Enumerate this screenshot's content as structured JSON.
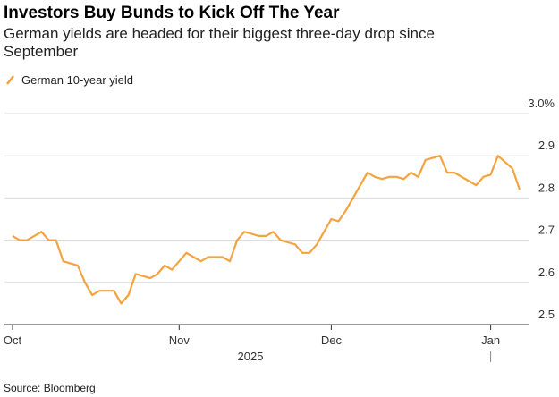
{
  "chart_data": {
    "type": "line",
    "title": "Investors Buy Bunds to Kick Off The Year",
    "subtitle": "German yields are headed for their biggest three-day drop since September",
    "source": "Source: Bloomberg",
    "year_label": "2025",
    "categories": [
      "Oct",
      null,
      null,
      null,
      null,
      null,
      null,
      null,
      null,
      null,
      null,
      null,
      null,
      null,
      null,
      null,
      null,
      null,
      null,
      null,
      null,
      null,
      null,
      "Nov",
      null,
      null,
      null,
      null,
      null,
      null,
      null,
      null,
      null,
      null,
      null,
      null,
      null,
      null,
      null,
      null,
      null,
      null,
      null,
      null,
      "Dec",
      null,
      null,
      null,
      null,
      null,
      null,
      null,
      null,
      null,
      null,
      null,
      null,
      null,
      null,
      null,
      null,
      null,
      null,
      null,
      null,
      null,
      "Jan",
      null,
      null,
      null,
      null
    ],
    "series": [
      {
        "name": "German 10-year yield",
        "color": "#f4a340",
        "values": [
          2.71,
          2.7,
          2.7,
          2.71,
          2.72,
          2.7,
          2.7,
          2.65,
          2.645,
          2.64,
          2.6,
          2.57,
          2.58,
          2.58,
          2.58,
          2.55,
          2.57,
          2.62,
          2.615,
          2.61,
          2.62,
          2.64,
          2.63,
          2.65,
          2.67,
          2.66,
          2.65,
          2.66,
          2.66,
          2.66,
          2.65,
          2.7,
          2.72,
          2.715,
          2.71,
          2.71,
          2.72,
          2.7,
          2.695,
          2.69,
          2.67,
          2.67,
          2.69,
          2.72,
          2.75,
          2.745,
          2.77,
          2.8,
          2.83,
          2.86,
          2.85,
          2.845,
          2.85,
          2.85,
          2.845,
          2.86,
          2.85,
          2.89,
          2.895,
          2.9,
          2.86,
          2.86,
          2.85,
          2.84,
          2.83,
          2.85,
          2.855,
          2.9,
          2.885,
          2.87,
          2.82
        ]
      }
    ],
    "ylim": [
      2.5,
      3.0
    ],
    "yticks": [
      2.5,
      2.6,
      2.7,
      2.8,
      2.9,
      {
        "value": 3.0,
        "label": "3.0%"
      }
    ],
    "grid": true
  }
}
